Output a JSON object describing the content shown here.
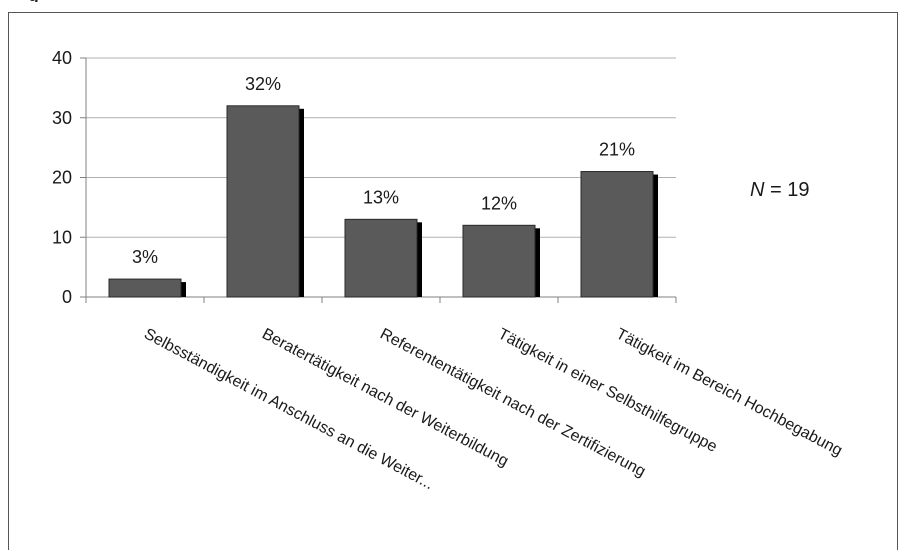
{
  "chart_data": {
    "type": "bar",
    "categories": [
      "Selbsständigkeit im Anschluss an die Weiter...",
      "Beratertätigkeit nach der Weiterbildung",
      "Referententätigkeit nach der Zertifizierung",
      "Tätigkeit in einer Selbsthilfegruppe",
      "Tätigkeit im Bereich Hochbegabung"
    ],
    "values": [
      3,
      32,
      13,
      12,
      21
    ],
    "data_labels": [
      "3%",
      "32%",
      "13%",
      "12%",
      "21%"
    ],
    "ylim": [
      0,
      40
    ],
    "yticks": [
      0,
      10,
      20,
      30,
      40
    ],
    "grid": true,
    "annotation": {
      "italic": "N",
      "rest": " = 19"
    },
    "colors": {
      "bar": "#5a5a5a",
      "bar_shadow": "#000000",
      "grid": "#b0b0b0",
      "axis": "#808080"
    }
  }
}
